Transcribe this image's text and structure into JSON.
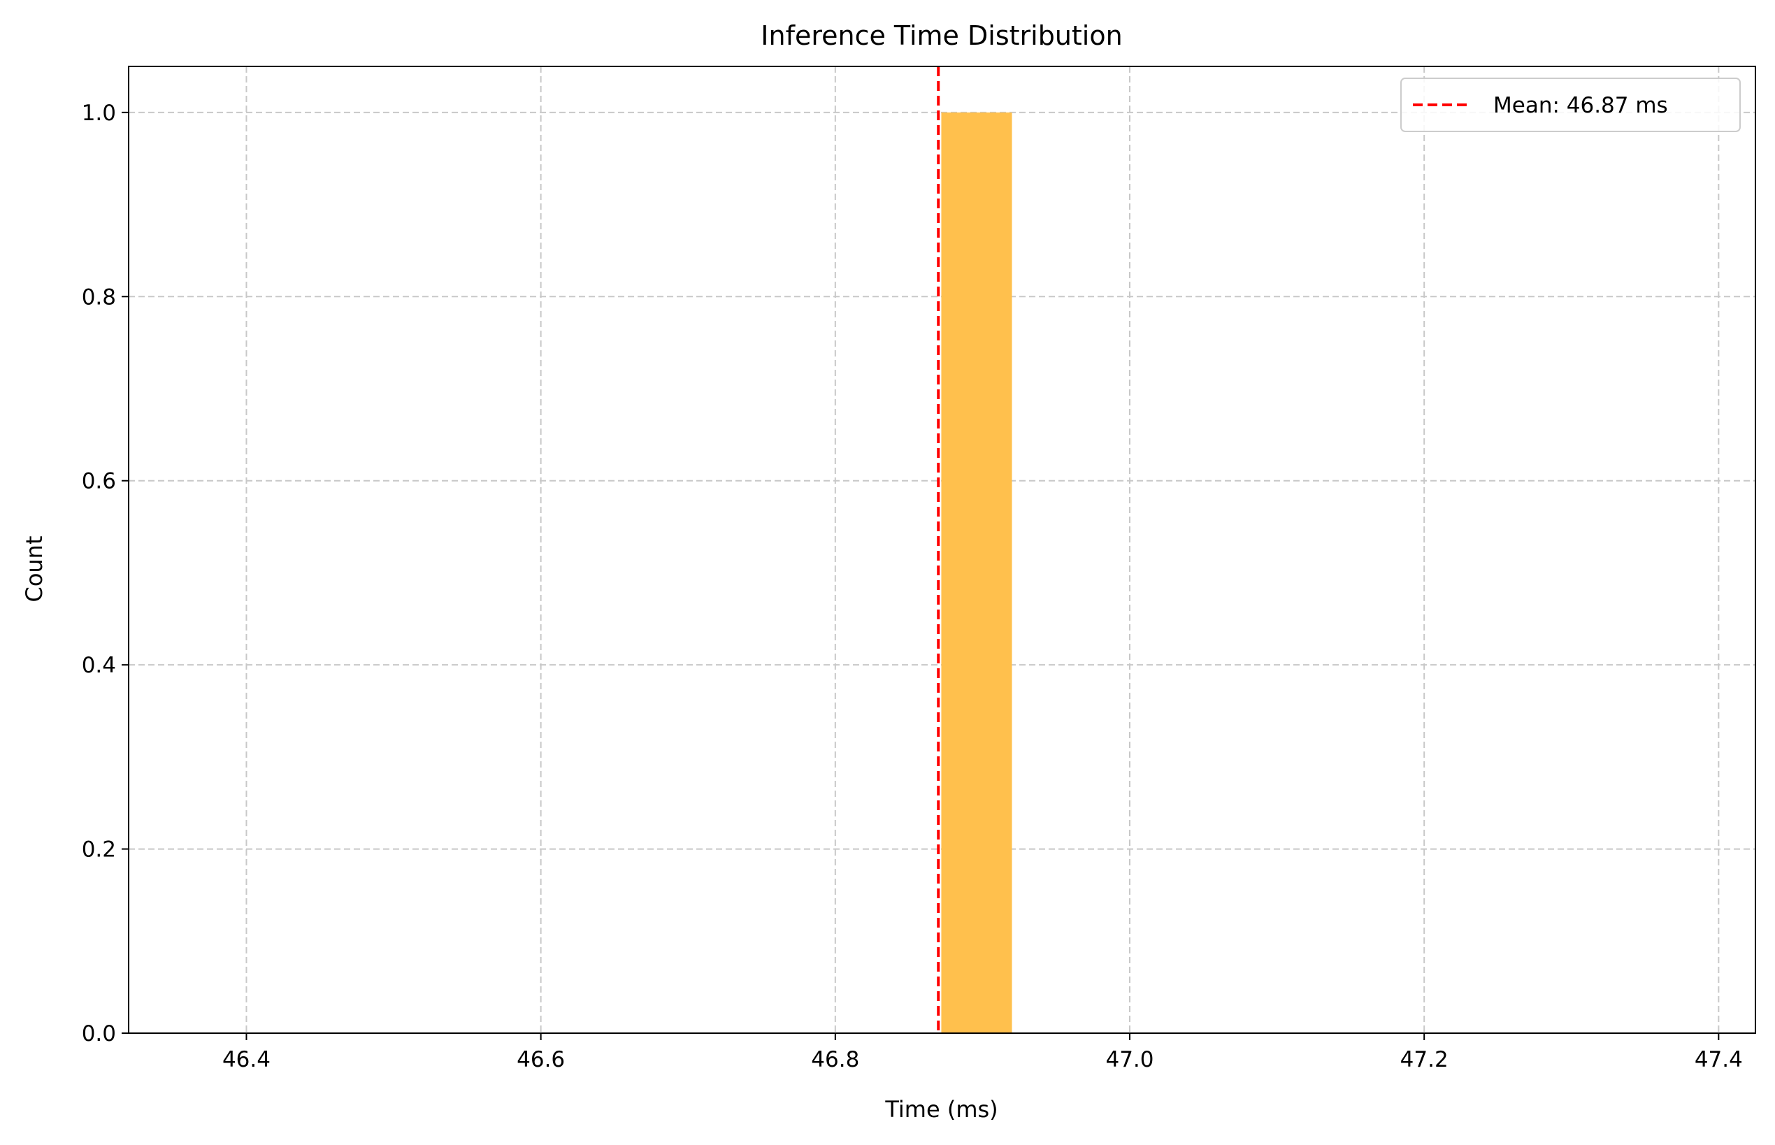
{
  "chart_data": {
    "type": "bar",
    "title": "Inference Time Distribution",
    "xlabel": "Time (ms)",
    "ylabel": "Count",
    "xlim": [
      46.32,
      47.425
    ],
    "ylim": [
      0,
      1.05
    ],
    "xticks": [
      46.4,
      46.6,
      46.8,
      47.0,
      47.2,
      47.4
    ],
    "xtick_labels": [
      "46.4",
      "46.6",
      "46.8",
      "47.0",
      "47.2",
      "47.4"
    ],
    "yticks": [
      0.0,
      0.2,
      0.4,
      0.6,
      0.8,
      1.0
    ],
    "ytick_labels": [
      "0.0",
      "0.2",
      "0.4",
      "0.6",
      "0.8",
      "1.0"
    ],
    "grid": true,
    "bars": [
      {
        "x_start": 46.872,
        "x_end": 46.92,
        "value": 1.0
      }
    ],
    "mean": {
      "value": 46.87,
      "label": "Mean: 46.87 ms"
    },
    "legend_position": "top-right",
    "colors": {
      "bar": "#ffc04d",
      "mean_line": "#ff0000",
      "grid": "#c8c8c8"
    }
  }
}
